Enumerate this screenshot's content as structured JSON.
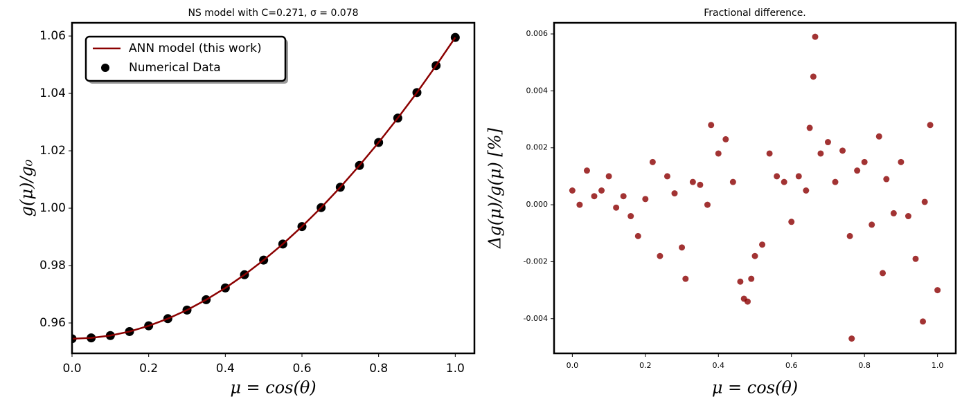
{
  "chart_data": [
    {
      "type": "line",
      "title": "NS model with C=0.271, σ = 0.078",
      "xlabel": "μ = cos(θ)",
      "ylabel": "g(μ)/g₀",
      "x": [
        0,
        0.05,
        0.1,
        0.15,
        0.2,
        0.25,
        0.3,
        0.35,
        0.4,
        0.45,
        0.5,
        0.55,
        0.6,
        0.65,
        0.7,
        0.75,
        0.8,
        0.85,
        0.9,
        0.95,
        1.0
      ],
      "series": [
        {
          "name": "ANN model (this work)",
          "style": "line",
          "color": "#8b0000",
          "values": [
            0.9545,
            0.9548,
            0.9556,
            0.957,
            0.959,
            0.9615,
            0.9645,
            0.9681,
            0.9722,
            0.9768,
            0.9819,
            0.9875,
            0.9936,
            1.0002,
            1.0073,
            1.0149,
            1.0229,
            1.0314,
            1.0403,
            1.0497,
            1.0595
          ]
        },
        {
          "name": "Numerical Data",
          "style": "scatter",
          "color": "#000000",
          "values": [
            0.9545,
            0.9548,
            0.9556,
            0.957,
            0.959,
            0.9615,
            0.9645,
            0.9681,
            0.9722,
            0.9768,
            0.9819,
            0.9875,
            0.9936,
            1.0002,
            1.0073,
            1.0149,
            1.0229,
            1.0314,
            1.0403,
            1.0497,
            1.0595
          ]
        }
      ],
      "xlim": [
        0,
        1.05
      ],
      "xticks": [
        {
          "value": 0,
          "label": "0.0"
        },
        0.2,
        0.4,
        0.6,
        0.8,
        {
          "value": 1,
          "label": "1.0"
        }
      ],
      "ylim": [
        0.9494,
        1.0646
      ],
      "yticks": [
        0.96,
        0.98,
        {
          "value": 1,
          "label": "1.00"
        },
        1.02,
        1.04,
        1.06
      ],
      "legend": "upper left"
    },
    {
      "type": "scatter",
      "title": "Fractional difference.",
      "xlabel": "μ = cos(θ)",
      "ylabel": "Δg(μ)/g(μ)  [%]",
      "color": "#8b0000",
      "x": [
        0,
        0.02,
        0.04,
        0.06,
        0.08,
        0.1,
        0.12,
        0.14,
        0.16,
        0.18,
        0.2,
        0.22,
        0.24,
        0.26,
        0.28,
        0.3,
        0.31,
        0.33,
        0.35,
        0.37,
        0.38,
        0.4,
        0.42,
        0.44,
        0.46,
        0.47,
        0.48,
        0.49,
        0.5,
        0.52,
        0.54,
        0.56,
        0.58,
        0.6,
        0.62,
        0.64,
        0.65,
        0.66,
        0.665,
        0.68,
        0.7,
        0.72,
        0.74,
        0.76,
        0.765,
        0.78,
        0.8,
        0.82,
        0.84,
        0.85,
        0.86,
        0.88,
        0.9,
        0.92,
        0.94,
        0.96,
        0.965,
        0.98,
        1.0
      ],
      "values": [
        0.0005,
        0.0,
        0.0012,
        0.0003,
        0.0005,
        0.001,
        -0.0001,
        0.0003,
        -0.0004,
        -0.0011,
        0.0002,
        0.0015,
        -0.0018,
        0.001,
        0.0004,
        -0.0015,
        -0.0026,
        0.0008,
        0.0007,
        0.0,
        0.0028,
        0.0018,
        0.0023,
        0.0008,
        -0.0027,
        -0.0033,
        -0.0034,
        -0.0026,
        -0.0018,
        -0.0014,
        0.0018,
        0.001,
        0.0008,
        -0.0006,
        0.001,
        0.0005,
        0.0027,
        0.0045,
        0.0059,
        0.0018,
        0.0022,
        0.0008,
        0.0019,
        -0.0011,
        -0.0047,
        0.0012,
        0.0015,
        -0.0007,
        0.0024,
        -0.0024,
        0.0009,
        -0.0003,
        0.0015,
        -0.0004,
        -0.0019,
        -0.0041,
        0.0001,
        0.0028,
        -0.003
      ],
      "xlim": [
        -0.05,
        1.05
      ],
      "xticks": [
        {
          "value": 0,
          "label": "0.0"
        },
        0.2,
        0.4,
        0.6,
        0.8,
        {
          "value": 1,
          "label": "1.0"
        }
      ],
      "ylim": [
        -0.00522,
        0.00639
      ],
      "yticks": [
        -0.004,
        -0.002,
        {
          "value": 0,
          "label": "0.000"
        },
        0.002,
        0.004,
        0.006
      ]
    }
  ]
}
